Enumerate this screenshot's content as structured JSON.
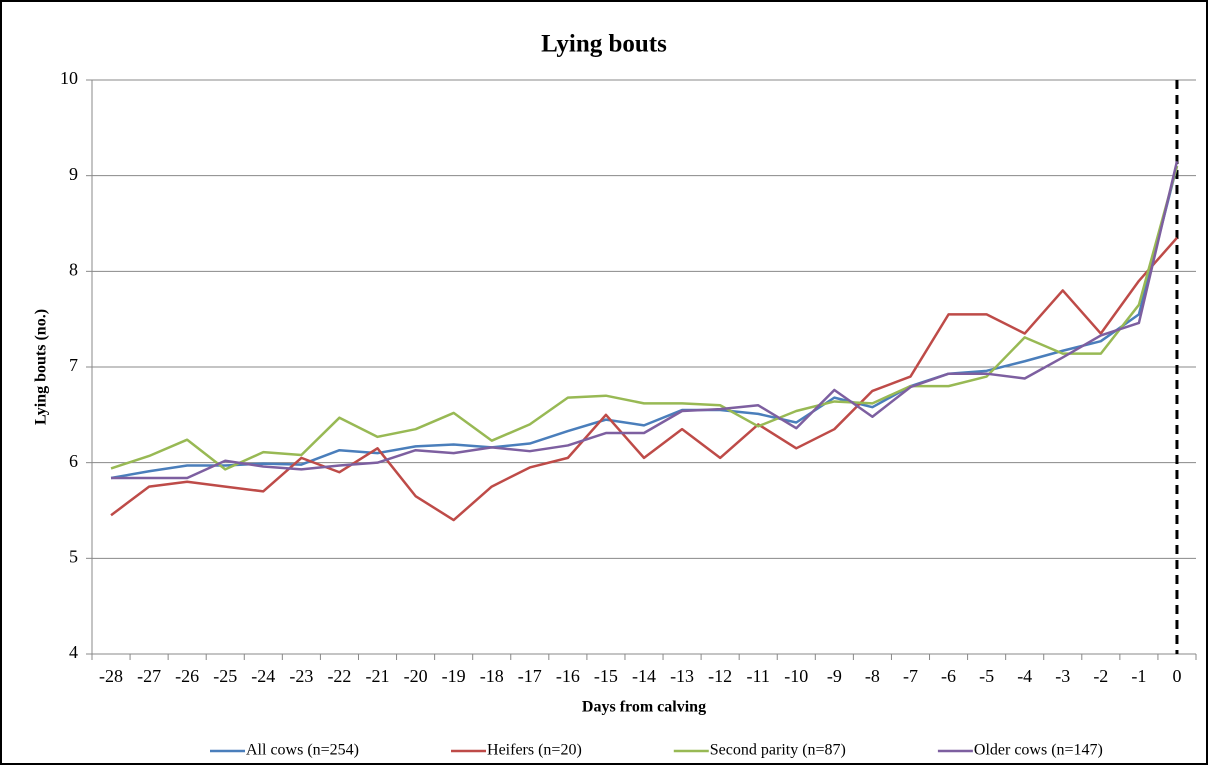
{
  "chart_data": {
    "type": "line",
    "title": "Lying bouts",
    "x_label": "Days from calving",
    "y_label": "Lying bouts (no.)",
    "categories": [
      "-28",
      "-27",
      "-26",
      "-25",
      "-24",
      "-23",
      "-22",
      "-21",
      "-20",
      "-19",
      "-18",
      "-17",
      "-16",
      "-15",
      "-14",
      "-13",
      "-12",
      "-11",
      "-10",
      "-9",
      "-8",
      "-7",
      "-6",
      "-5",
      "-4",
      "-3",
      "-2",
      "-1",
      "0"
    ],
    "series": [
      {
        "name": "All cows (n=254)",
        "color": "#4a7ebb",
        "values": [
          5.84,
          5.91,
          5.97,
          5.97,
          5.99,
          5.98,
          6.13,
          6.1,
          6.17,
          6.19,
          6.16,
          6.2,
          6.33,
          6.45,
          6.39,
          6.55,
          6.55,
          6.51,
          6.42,
          6.68,
          6.58,
          6.8,
          6.93,
          6.96,
          7.06,
          7.17,
          7.27,
          7.55,
          9.1
        ]
      },
      {
        "name": "Heifers (n=20)",
        "color": "#be4b48",
        "values": [
          5.45,
          5.75,
          5.8,
          5.75,
          5.7,
          6.05,
          5.9,
          6.15,
          5.65,
          5.4,
          5.75,
          5.95,
          6.05,
          6.5,
          6.05,
          6.35,
          6.05,
          6.4,
          6.15,
          6.35,
          6.75,
          6.9,
          7.55,
          7.55,
          7.35,
          7.8,
          7.35,
          7.9,
          8.35
        ]
      },
      {
        "name": "Second parity (n=87)",
        "color": "#98b954",
        "values": [
          5.94,
          6.07,
          6.24,
          5.93,
          6.11,
          6.08,
          6.47,
          6.27,
          6.35,
          6.52,
          6.23,
          6.4,
          6.68,
          6.7,
          6.62,
          6.62,
          6.6,
          6.38,
          6.54,
          6.64,
          6.62,
          6.8,
          6.8,
          6.9,
          7.31,
          7.14,
          7.14,
          7.65,
          9.1
        ]
      },
      {
        "name": "Older cows (n=147)",
        "color": "#7d5fa0",
        "values": [
          5.84,
          5.84,
          5.84,
          6.02,
          5.96,
          5.93,
          5.97,
          6.0,
          6.13,
          6.1,
          6.16,
          6.12,
          6.18,
          6.31,
          6.31,
          6.54,
          6.56,
          6.6,
          6.36,
          6.76,
          6.48,
          6.79,
          6.93,
          6.93,
          6.88,
          7.1,
          7.33,
          7.46,
          9.15
        ]
      }
    ],
    "ylim": [
      4,
      10
    ],
    "yticks": [
      4,
      5,
      6,
      7,
      8,
      9,
      10
    ],
    "grid": true,
    "vline_category": 28,
    "legend": "bottom"
  }
}
